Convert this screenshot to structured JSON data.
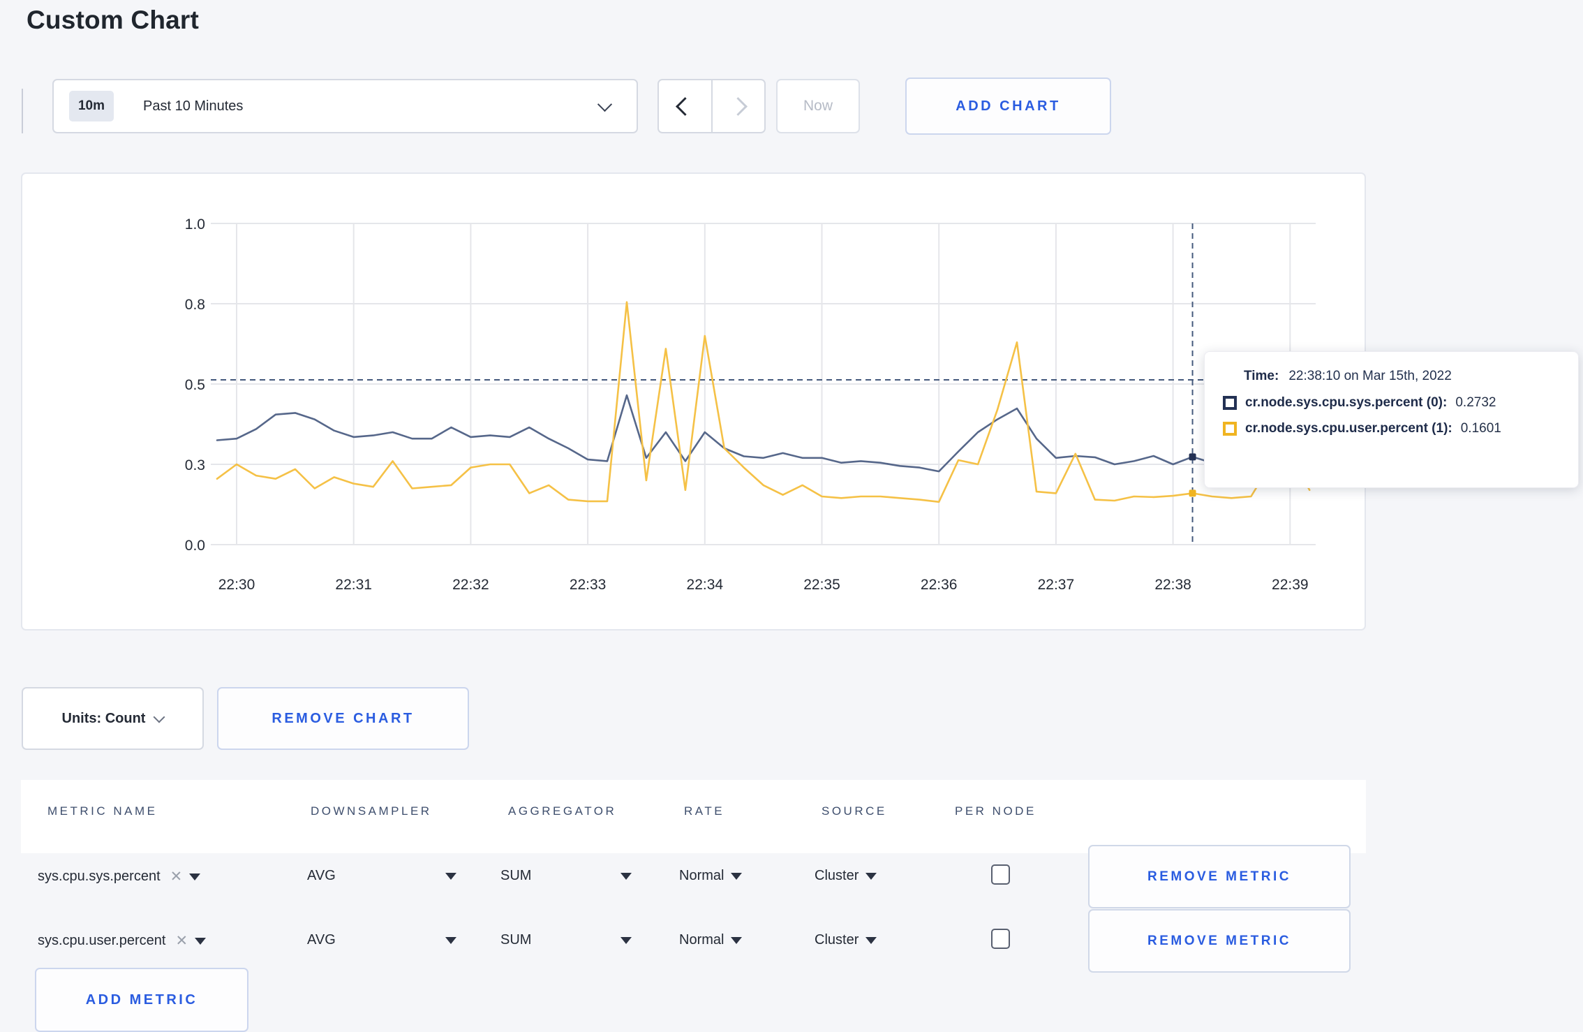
{
  "page": {
    "title": "Custom Chart",
    "background": "#f5f6f9",
    "accent_blue": "#2a5ce0"
  },
  "toolbar": {
    "timescale_badge": "10m",
    "timescale_label": "Past 10 Minutes",
    "now_label": "Now",
    "add_chart_label": "ADD CHART"
  },
  "chart_controls": {
    "units_label": "Units: Count",
    "remove_chart_label": "REMOVE CHART"
  },
  "tooltip": {
    "time_label": "Time:",
    "time_value": "22:38:10 on Mar 15th, 2022",
    "rows": [
      {
        "name": "cr.node.sys.cpu.sys.percent (0):",
        "value": "0.2732",
        "swatch_color": "#233154"
      },
      {
        "name": "cr.node.sys.cpu.user.percent (1):",
        "value": "0.1601",
        "swatch_color": "#f0b421"
      }
    ]
  },
  "table": {
    "headers": [
      "METRIC NAME",
      "DOWNSAMPLER",
      "AGGREGATOR",
      "RATE",
      "SOURCE",
      "PER NODE"
    ],
    "rows": [
      {
        "metric": "sys.cpu.sys.percent",
        "remove_icon": "x",
        "downsampler": "AVG",
        "aggregator": "SUM",
        "rate": "Normal",
        "source": "Cluster",
        "per_node_checked": false,
        "remove_label": "REMOVE METRIC"
      },
      {
        "metric": "sys.cpu.user.percent",
        "remove_icon": "x",
        "downsampler": "AVG",
        "aggregator": "SUM",
        "rate": "Normal",
        "source": "Cluster",
        "per_node_checked": false,
        "remove_label": "REMOVE METRIC"
      }
    ],
    "add_metric_label": "ADD METRIC"
  },
  "chart_data": {
    "type": "line",
    "title": "",
    "xlabel": "",
    "ylabel": "",
    "ylim": [
      0,
      1
    ],
    "grid": true,
    "x_ticks": [
      "22:30",
      "22:31",
      "22:32",
      "22:33",
      "22:34",
      "22:35",
      "22:36",
      "22:37",
      "22:38",
      "22:39"
    ],
    "y_tick_labels": [
      "0.0",
      "0.3",
      "0.5",
      "0.8",
      "1.0"
    ],
    "y_tick_values": [
      0,
      0.25,
      0.5,
      0.75,
      1.0
    ],
    "times": [
      "22:29:50",
      "22:30:00",
      "22:30:10",
      "22:30:20",
      "22:30:30",
      "22:30:40",
      "22:30:50",
      "22:31:00",
      "22:31:10",
      "22:31:20",
      "22:31:30",
      "22:31:40",
      "22:31:50",
      "22:32:00",
      "22:32:10",
      "22:32:20",
      "22:32:30",
      "22:32:40",
      "22:32:50",
      "22:33:00",
      "22:33:10",
      "22:33:20",
      "22:33:30",
      "22:33:40",
      "22:33:50",
      "22:34:00",
      "22:34:10",
      "22:34:20",
      "22:34:30",
      "22:34:40",
      "22:34:50",
      "22:35:00",
      "22:35:10",
      "22:35:20",
      "22:35:30",
      "22:35:40",
      "22:35:50",
      "22:36:00",
      "22:36:10",
      "22:36:20",
      "22:36:30",
      "22:36:40",
      "22:36:50",
      "22:37:00",
      "22:37:10",
      "22:37:20",
      "22:37:30",
      "22:37:40",
      "22:37:50",
      "22:38:00",
      "22:38:10",
      "22:38:20",
      "22:38:30",
      "22:38:40",
      "22:38:50",
      "22:39:00",
      "22:39:10"
    ],
    "series": [
      {
        "name": "cr.node.sys.cpu.sys.percent",
        "color": "#56678a",
        "swatch_color": "#233154",
        "values": [
          0.325,
          0.33,
          0.36,
          0.405,
          0.41,
          0.39,
          0.355,
          0.335,
          0.34,
          0.35,
          0.33,
          0.33,
          0.365,
          0.335,
          0.34,
          0.335,
          0.365,
          0.33,
          0.3,
          0.265,
          0.26,
          0.465,
          0.27,
          0.35,
          0.26,
          0.35,
          0.3,
          0.275,
          0.27,
          0.285,
          0.27,
          0.27,
          0.255,
          0.26,
          0.255,
          0.245,
          0.24,
          0.228,
          0.29,
          0.35,
          0.39,
          0.424,
          0.33,
          0.27,
          0.276,
          0.272,
          0.25,
          0.26,
          0.276,
          0.25,
          0.2732,
          0.255,
          0.26,
          0.27,
          0.285,
          0.3,
          0.305
        ]
      },
      {
        "name": "cr.node.sys.cpu.user.percent",
        "color": "#f5c146",
        "swatch_color": "#f0b421",
        "values": [
          0.205,
          0.25,
          0.215,
          0.205,
          0.235,
          0.175,
          0.21,
          0.19,
          0.18,
          0.26,
          0.175,
          0.18,
          0.185,
          0.24,
          0.25,
          0.25,
          0.16,
          0.185,
          0.14,
          0.135,
          0.135,
          0.755,
          0.2,
          0.61,
          0.17,
          0.65,
          0.3,
          0.24,
          0.185,
          0.155,
          0.185,
          0.15,
          0.145,
          0.15,
          0.15,
          0.145,
          0.14,
          0.133,
          0.263,
          0.25,
          0.42,
          0.63,
          0.165,
          0.16,
          0.283,
          0.14,
          0.137,
          0.15,
          0.148,
          0.152,
          0.1601,
          0.15,
          0.145,
          0.15,
          0.25,
          0.28,
          0.17
        ]
      }
    ],
    "crosshair": {
      "time": "22:38:10",
      "y_value": 0.513
    },
    "legend_position": "tooltip"
  }
}
